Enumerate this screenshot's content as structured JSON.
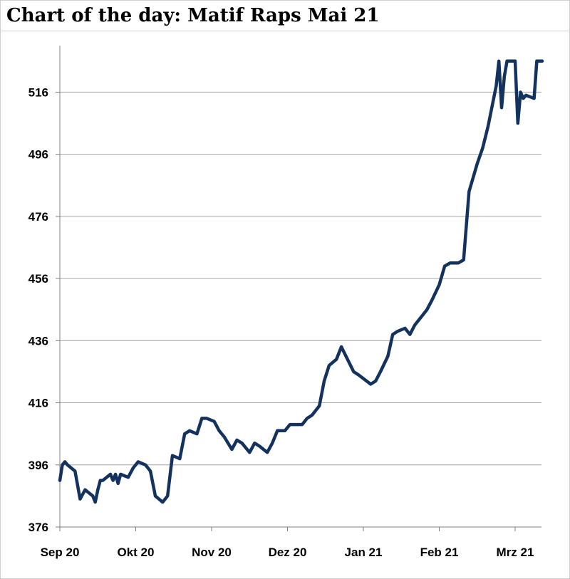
{
  "chart_data": {
    "type": "line",
    "title": "Chart of the day: Matif Raps Mai 21",
    "xlabel": "",
    "ylabel": "",
    "ylim": [
      376,
      531
    ],
    "y_ticks": [
      376,
      396,
      416,
      436,
      456,
      476,
      496,
      516
    ],
    "x_ticks": [
      {
        "label": "Sep 20",
        "date": "2020-09-01"
      },
      {
        "label": "Okt 20",
        "date": "2020-10-01"
      },
      {
        "label": "Nov 20",
        "date": "2020-11-01"
      },
      {
        "label": "Dez 20",
        "date": "2020-12-01"
      },
      {
        "label": "Jan 21",
        "date": "2021-01-01"
      },
      {
        "label": "Feb 21",
        "date": "2021-02-01"
      },
      {
        "label": "Mrz 21",
        "date": "2021-03-01"
      }
    ],
    "grid": true,
    "legend": "none",
    "colors": {
      "line": "#14325e",
      "grid": "#a6a6a6",
      "axis": "#808080"
    },
    "series": [
      {
        "x": [
          "2020-09-01",
          "2020-09-02",
          "2020-09-03",
          "2020-09-04",
          "2020-09-07",
          "2020-09-09",
          "2020-09-11",
          "2020-09-14",
          "2020-09-15",
          "2020-09-16",
          "2020-09-17",
          "2020-09-18",
          "2020-09-21",
          "2020-09-22",
          "2020-09-23",
          "2020-09-24",
          "2020-09-25",
          "2020-09-28",
          "2020-09-30",
          "2020-10-02",
          "2020-10-05",
          "2020-10-07",
          "2020-10-09",
          "2020-10-12",
          "2020-10-14",
          "2020-10-16",
          "2020-10-19",
          "2020-10-21",
          "2020-10-23",
          "2020-10-26",
          "2020-10-28",
          "2020-10-30",
          "2020-11-02",
          "2020-11-04",
          "2020-11-06",
          "2020-11-09",
          "2020-11-11",
          "2020-11-13",
          "2020-11-16",
          "2020-11-18",
          "2020-11-20",
          "2020-11-23",
          "2020-11-25",
          "2020-11-27",
          "2020-11-30",
          "2020-12-02",
          "2020-12-04",
          "2020-12-07",
          "2020-12-09",
          "2020-12-11",
          "2020-12-14",
          "2020-12-16",
          "2020-12-18",
          "2020-12-21",
          "2020-12-23",
          "2020-12-28",
          "2020-12-30",
          "2021-01-04",
          "2021-01-06",
          "2021-01-08",
          "2021-01-11",
          "2021-01-13",
          "2021-01-15",
          "2021-01-18",
          "2021-01-20",
          "2021-01-22",
          "2021-01-25",
          "2021-01-27",
          "2021-01-29",
          "2021-02-01",
          "2021-02-03",
          "2021-02-05",
          "2021-02-08",
          "2021-02-10",
          "2021-02-12",
          "2021-02-15",
          "2021-02-17",
          "2021-02-19",
          "2021-02-22",
          "2021-02-23",
          "2021-02-24",
          "2021-02-25",
          "2021-02-26",
          "2021-03-01",
          "2021-03-02",
          "2021-03-03",
          "2021-03-04",
          "2021-03-05",
          "2021-03-08",
          "2021-03-09",
          "2021-03-10",
          "2021-03-11"
        ],
        "y": [
          391,
          396,
          397,
          396,
          394,
          385,
          388,
          386,
          384,
          388,
          391,
          391,
          393,
          391,
          393,
          390,
          393,
          392,
          395,
          397,
          396,
          394,
          386,
          384,
          386,
          399,
          398,
          406,
          407,
          406,
          411,
          411,
          410,
          407,
          405,
          401,
          404,
          403,
          400,
          403,
          402,
          400,
          403,
          407,
          407,
          409,
          409,
          409,
          411,
          412,
          415,
          423,
          428,
          430,
          434,
          426,
          425,
          422,
          423,
          426,
          431,
          438,
          439,
          440,
          438,
          441,
          444,
          446,
          449,
          454,
          460,
          461,
          461,
          462,
          484,
          493,
          498,
          505,
          518,
          526,
          511,
          521,
          526,
          526,
          506,
          516,
          514,
          515,
          514,
          526,
          526,
          526
        ],
        "note": "values estimated from the plotted line"
      }
    ]
  }
}
